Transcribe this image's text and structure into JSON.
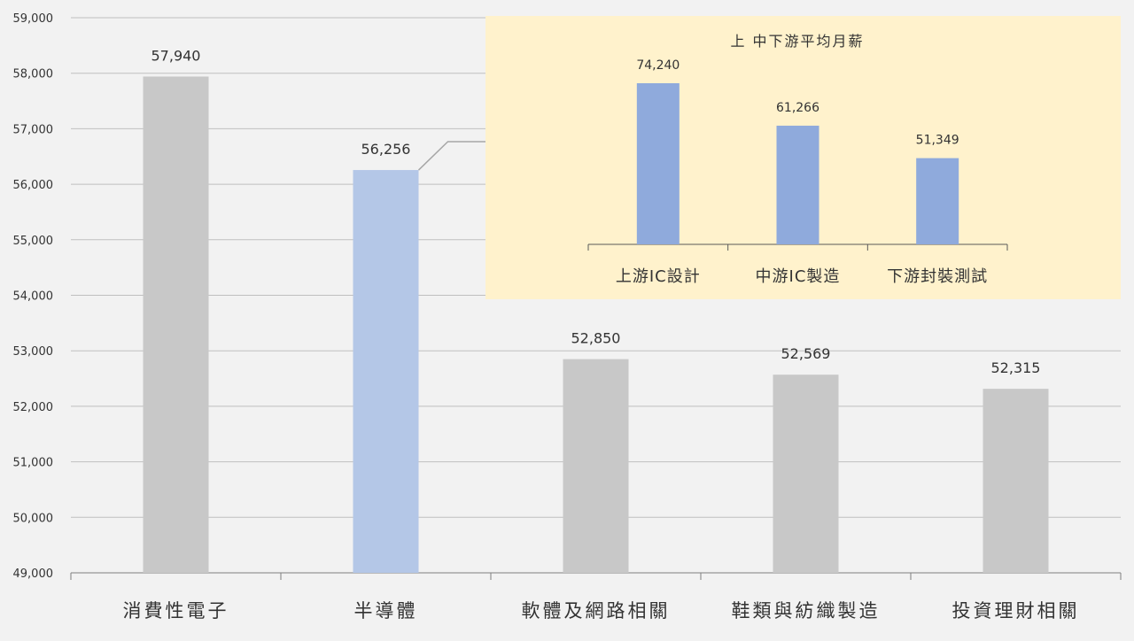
{
  "chart_data": [
    {
      "type": "bar",
      "title": "",
      "xlabel": "",
      "ylabel": "",
      "categories": [
        "消費性電子",
        "半導體",
        "軟體及網路相關",
        "鞋類與紡織製造",
        "投資理財相關"
      ],
      "values": [
        57940,
        56256,
        52850,
        52569,
        52315
      ],
      "value_labels": [
        "57,940",
        "56,256",
        "52,850",
        "52,569",
        "52,315"
      ],
      "ylim": [
        49000,
        59000
      ],
      "y_ticks": [
        "49,000",
        "50,000",
        "51,000",
        "52,000",
        "53,000",
        "54,000",
        "55,000",
        "56,000",
        "57,000",
        "58,000",
        "59,000"
      ],
      "grid": true,
      "colors": {
        "default": "#c8c8c8",
        "highlight": "#b4c7e7"
      },
      "highlight_index": 1
    },
    {
      "type": "bar",
      "title": "上 中下游平均月薪",
      "xlabel": "",
      "ylabel": "",
      "categories": [
        "上游IC設計",
        "中游IC製造",
        "下游封裝測試"
      ],
      "values": [
        74240,
        61266,
        51349
      ],
      "value_labels": [
        "74,240",
        "61,266",
        "51,349"
      ],
      "grid": false,
      "colors": {
        "bar": "#8faadc",
        "panel": "#fff2cc"
      }
    }
  ]
}
